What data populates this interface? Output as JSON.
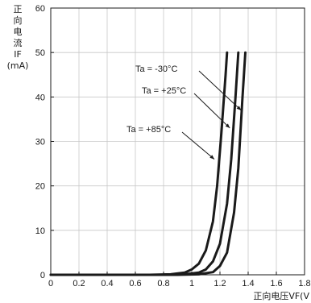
{
  "chart_data": {
    "type": "line",
    "ylabel": {
      "lines": [
        "正",
        "向",
        "电",
        "流",
        "IF",
        "(mA)"
      ]
    },
    "xlabel": "正向电压VF(V",
    "xlim": [
      0,
      1.8
    ],
    "ylim": [
      0,
      60
    ],
    "x_ticks": [
      "0",
      "0.2",
      "0.4",
      "0.6",
      "0.8",
      "1",
      "1.2",
      "1.4",
      "1.6",
      "1.8"
    ],
    "y_ticks": [
      "0",
      "10",
      "20",
      "30",
      "40",
      "50",
      "60"
    ],
    "grid": true,
    "line_color": "#1a1a1a",
    "series": [
      {
        "name": "Ta = +85°C",
        "x": [
          0,
          0.7,
          0.85,
          0.95,
          1.0,
          1.05,
          1.1,
          1.15,
          1.18,
          1.21,
          1.24,
          1.25
        ],
        "y": [
          0,
          0,
          0.1,
          0.5,
          1.2,
          2.5,
          5.5,
          12,
          20,
          32,
          45,
          50
        ]
      },
      {
        "name": "Ta = +25°C",
        "x": [
          0,
          0.8,
          0.95,
          1.05,
          1.1,
          1.15,
          1.2,
          1.25,
          1.28,
          1.31,
          1.33
        ],
        "y": [
          0,
          0,
          0.1,
          0.5,
          1.2,
          3,
          7,
          16,
          26,
          40,
          50
        ]
      },
      {
        "name": "Ta = -30°C",
        "x": [
          0,
          0.9,
          1.05,
          1.15,
          1.2,
          1.25,
          1.3,
          1.33,
          1.36,
          1.38
        ],
        "y": [
          0,
          0,
          0.1,
          0.6,
          2,
          5,
          14,
          24,
          40,
          50
        ]
      }
    ],
    "annotations": [
      {
        "series": "Ta = -30°C",
        "text": "Ta = -30°C",
        "point": [
          1.35,
          37
        ]
      },
      {
        "series": "Ta = +25°C",
        "text": "Ta = +25°C",
        "point": [
          1.27,
          33
        ]
      },
      {
        "series": "Ta = +85°C",
        "text": "Ta = +85°C",
        "point": [
          1.16,
          26
        ]
      }
    ]
  }
}
